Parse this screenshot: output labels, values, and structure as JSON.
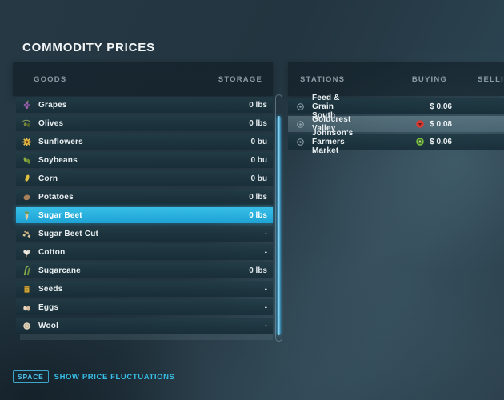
{
  "title": "COMMODITY PRICES",
  "colors": {
    "accent_selected": "#2bb0dd",
    "hint_cyan": "#38bfe8",
    "trend_down_red": "#d93b35",
    "trend_up_green": "#79c043"
  },
  "goods_panel": {
    "headers": {
      "goods": "GOODS",
      "storage": "STORAGE"
    },
    "items": [
      {
        "name": "Grapes",
        "storage": "0 lbs",
        "icon": "grapes",
        "selected": false
      },
      {
        "name": "Olives",
        "storage": "0 lbs",
        "icon": "olives",
        "selected": false
      },
      {
        "name": "Sunflowers",
        "storage": "0 bu",
        "icon": "sunflower",
        "selected": false
      },
      {
        "name": "Soybeans",
        "storage": "0 bu",
        "icon": "soybeans",
        "selected": false
      },
      {
        "name": "Corn",
        "storage": "0 bu",
        "icon": "corn",
        "selected": false
      },
      {
        "name": "Potatoes",
        "storage": "0 lbs",
        "icon": "potato",
        "selected": false
      },
      {
        "name": "Sugar Beet",
        "storage": "0 lbs",
        "icon": "sugar-beet",
        "selected": true
      },
      {
        "name": "Sugar Beet Cut",
        "storage": "-",
        "icon": "sugar-beet-cut",
        "selected": false
      },
      {
        "name": "Cotton",
        "storage": "-",
        "icon": "cotton",
        "selected": false
      },
      {
        "name": "Sugarcane",
        "storage": "0 lbs",
        "icon": "sugarcane",
        "selected": false
      },
      {
        "name": "Seeds",
        "storage": "-",
        "icon": "seeds",
        "selected": false
      },
      {
        "name": "Eggs",
        "storage": "-",
        "icon": "eggs",
        "selected": false
      },
      {
        "name": "Wool",
        "storage": "-",
        "icon": "wool",
        "selected": false
      }
    ]
  },
  "stations_panel": {
    "headers": {
      "stations": "STATIONS",
      "buying": "BUYING",
      "selling": "SELLING"
    },
    "rows": [
      {
        "name": "Feed & Grain South",
        "buying": "$ 0.06",
        "trend": "none",
        "highlight": false
      },
      {
        "name": "Goldcrest Valley",
        "buying": "$ 0.08",
        "trend": "down",
        "highlight": true
      },
      {
        "name": "Johnson's Farmers Market",
        "buying": "$ 0.06",
        "trend": "up",
        "highlight": false
      }
    ]
  },
  "footer": {
    "key": "SPACE",
    "label": "SHOW PRICE FLUCTUATIONS"
  }
}
